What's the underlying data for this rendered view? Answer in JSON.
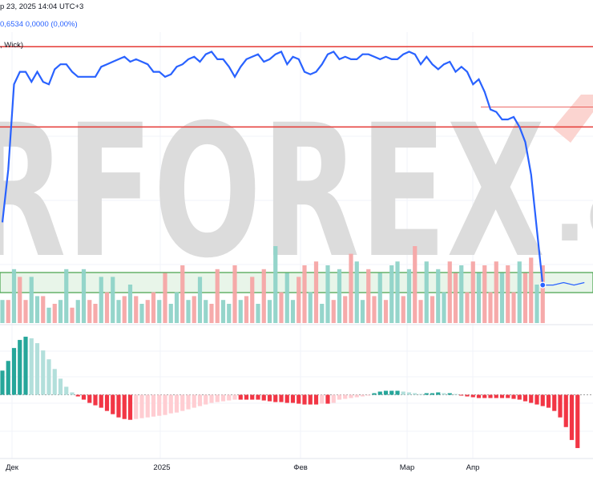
{
  "header": {
    "date_line": "р 23, 2025 14:04 UTC+3",
    "value_line": "0,6534  0,0000 (0,00%)",
    "wick_label": ", Wick)"
  },
  "watermark": {
    "text": "RFOREX",
    "suffix": ".c"
  },
  "colors": {
    "line": "#2962ff",
    "level_line": "#e53935",
    "zone_fill": "#e8f5e9",
    "zone_border": "#43a047",
    "up_strong": "#26a69a",
    "up_weak": "#b2dfdb",
    "down_strong": "#f23645",
    "down_weak": "#ffcdd2",
    "vol_up": "#8fd3c8",
    "vol_down": "#f5a5a5",
    "watermark": "#d9d9d9",
    "watermark_accent": "#fbd4d0"
  },
  "chart_data": {
    "type": "line",
    "x_labels": [
      "Дек",
      "2025",
      "Фев",
      "Мар",
      "Апр"
    ],
    "price_series": [
      28,
      49,
      83,
      88,
      88,
      84,
      88,
      84,
      83,
      89,
      91,
      91,
      88,
      86,
      86,
      86,
      86,
      90,
      91,
      92,
      93,
      94,
      92,
      93,
      92,
      91,
      88,
      88,
      86,
      87,
      90,
      91,
      93,
      94,
      92,
      95,
      96,
      93,
      93,
      90,
      86,
      90,
      93,
      94,
      95,
      92,
      93,
      95,
      96,
      91,
      94,
      93,
      88,
      87,
      88,
      91,
      95,
      96,
      93,
      94,
      93,
      93,
      95,
      95,
      94,
      93,
      94,
      93,
      93,
      95,
      96,
      95,
      91,
      94,
      91,
      89,
      91,
      92,
      88,
      90,
      88,
      83,
      85,
      80,
      73,
      72,
      69,
      69,
      70,
      66,
      60,
      47,
      25,
      3
    ],
    "price_tail": [
      3,
      4,
      3,
      4
    ],
    "price_ylim": [
      0,
      100
    ],
    "level_lines": [
      98,
      66,
      74
    ],
    "zone": {
      "low": 0,
      "high": 8
    },
    "volume": [
      6,
      6,
      14,
      12,
      6,
      12,
      7,
      7,
      4,
      5,
      6,
      14,
      4,
      6,
      14,
      6,
      5,
      12,
      8,
      12,
      6,
      7,
      10,
      7,
      5,
      6,
      8,
      6,
      13,
      5,
      8,
      15,
      6,
      7,
      12,
      6,
      5,
      14,
      6,
      5,
      15,
      6,
      7,
      12,
      5,
      14,
      6,
      20,
      8,
      13,
      6,
      12,
      15,
      8,
      16,
      5,
      15,
      6,
      14,
      7,
      18,
      16,
      6,
      14,
      7,
      13,
      6,
      15,
      16,
      7,
      14,
      20,
      6,
      16,
      7,
      14,
      8,
      16,
      13,
      15,
      8,
      16,
      13,
      15,
      8,
      16,
      13,
      15,
      8,
      16,
      13,
      17,
      10,
      15
    ],
    "volume_dir": [
      1,
      0,
      1,
      0,
      0,
      1,
      1,
      0,
      1,
      0,
      1,
      1,
      0,
      1,
      1,
      0,
      0,
      1,
      0,
      1,
      1,
      0,
      1,
      0,
      1,
      0,
      0,
      1,
      0,
      1,
      1,
      0,
      1,
      0,
      1,
      1,
      0,
      0,
      1,
      1,
      0,
      1,
      0,
      0,
      1,
      0,
      1,
      1,
      0,
      1,
      1,
      0,
      0,
      1,
      0,
      1,
      1,
      0,
      1,
      0,
      0,
      1,
      1,
      0,
      0,
      1,
      0,
      1,
      1,
      0,
      1,
      0,
      0,
      1,
      0,
      1,
      1,
      0,
      0,
      1,
      0,
      0,
      1,
      0,
      0,
      0,
      1,
      0,
      0,
      1,
      0,
      0,
      1,
      0
    ],
    "oscillator": [
      30,
      42,
      58,
      68,
      72,
      70,
      64,
      55,
      44,
      32,
      20,
      10,
      3,
      -2,
      -6,
      -10,
      -13,
      -16,
      -20,
      -24,
      -28,
      -30,
      -31,
      -30,
      -29,
      -28,
      -27,
      -26,
      -25,
      -23,
      -22,
      -20,
      -18,
      -16,
      -14,
      -12,
      -10,
      -9,
      -8,
      -7,
      -6,
      -6,
      -6,
      -6,
      -6,
      -7,
      -8,
      -9,
      -9,
      -10,
      -10,
      -11,
      -12,
      -12,
      -12,
      -11,
      -11,
      -10,
      -6,
      -5,
      -4,
      -3,
      -2,
      -1,
      2,
      4,
      5,
      5,
      5,
      4,
      3,
      2,
      1,
      2,
      2,
      3,
      2,
      2,
      1,
      -1,
      -2,
      -3,
      -4,
      -4,
      -4,
      -4,
      -4,
      -4,
      -5,
      -6,
      -8,
      -10,
      -12,
      -14,
      -16,
      -20,
      -28,
      -40,
      -56,
      -66
    ],
    "osc_ylim": [
      -75,
      80
    ]
  }
}
